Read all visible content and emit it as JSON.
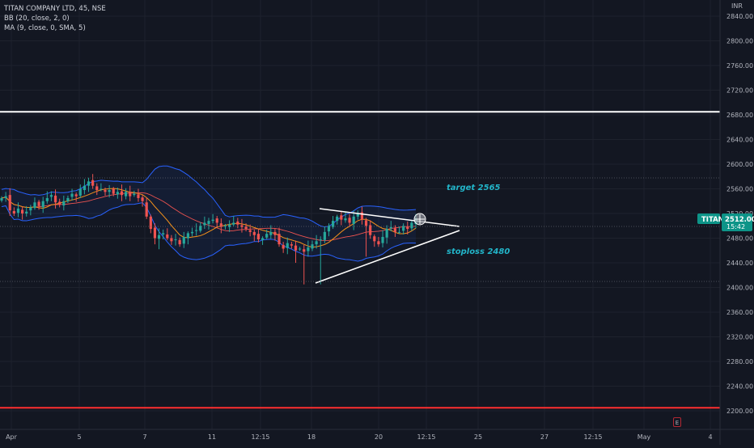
{
  "legend": {
    "symbol": "TITAN COMPANY LTD, 45, NSE",
    "bb": "BB (20, close, 2, 0)",
    "ma": "MA (9, close, 0, SMA, 5)"
  },
  "currency": "INR",
  "price_tag": {
    "symbol": "TITAN",
    "price": "2512.00",
    "countdown": "15:42"
  },
  "annotations": {
    "target": "target 2565",
    "stoploss": "stoploss 2480"
  },
  "e_button": "E",
  "colors": {
    "background": "#131722",
    "up": "#26a69a",
    "down": "#ef5350",
    "bb_band": "#2962ff",
    "ma": "#f7931a",
    "resistance": "#ffffff",
    "support": "#ff2f2f",
    "annotation": "#22b5c9"
  },
  "chart_data": {
    "type": "candlestick",
    "y_axis": {
      "min": 2180,
      "max": 2850,
      "ticks": [
        2840,
        2800,
        2760,
        2720,
        2680,
        2640,
        2600,
        2560,
        2520,
        2480,
        2440,
        2400,
        2360,
        2320,
        2280,
        2240,
        2200
      ]
    },
    "x_axis": {
      "tick_labels": [
        "Apr",
        "5",
        "7",
        "11",
        "12:15",
        "18",
        "20",
        "12:15",
        "25",
        "27",
        "12:15",
        "May",
        "4"
      ]
    },
    "horizontal_levels": [
      {
        "label": "resistance",
        "value": 2685
      },
      {
        "label": "support",
        "value": 2205
      }
    ],
    "series": [
      {
        "name": "price",
        "kind": "candles"
      },
      {
        "name": "BB (20, close, 2, 0)",
        "kind": "band"
      },
      {
        "name": "MA (9, close, 0, SMA, 5)",
        "kind": "line"
      }
    ],
    "close": [
      2545,
      2548,
      2525,
      2520,
      2528,
      2520,
      2523,
      2530,
      2538,
      2532,
      2540,
      2545,
      2550,
      2538,
      2535,
      2540,
      2545,
      2552,
      2548,
      2560,
      2565,
      2572,
      2565,
      2558,
      2560,
      2555,
      2558,
      2552,
      2555,
      2550,
      2555,
      2548,
      2552,
      2545,
      2540,
      2515,
      2495,
      2480,
      2485,
      2488,
      2480,
      2475,
      2478,
      2470,
      2482,
      2488,
      2490,
      2493,
      2500,
      2505,
      2508,
      2510,
      2505,
      2498,
      2500,
      2502,
      2505,
      2502,
      2498,
      2495,
      2490,
      2485,
      2478,
      2480,
      2487,
      2490,
      2485,
      2470,
      2463,
      2472,
      2468,
      2460,
      2463,
      2458,
      2465,
      2470,
      2475,
      2478,
      2490,
      2500,
      2508,
      2515,
      2510,
      2512,
      2505,
      2515,
      2520,
      2510,
      2500,
      2485,
      2475,
      2470,
      2482,
      2495,
      2498,
      2490,
      2490,
      2500,
      2495,
      2505,
      2512
    ]
  }
}
